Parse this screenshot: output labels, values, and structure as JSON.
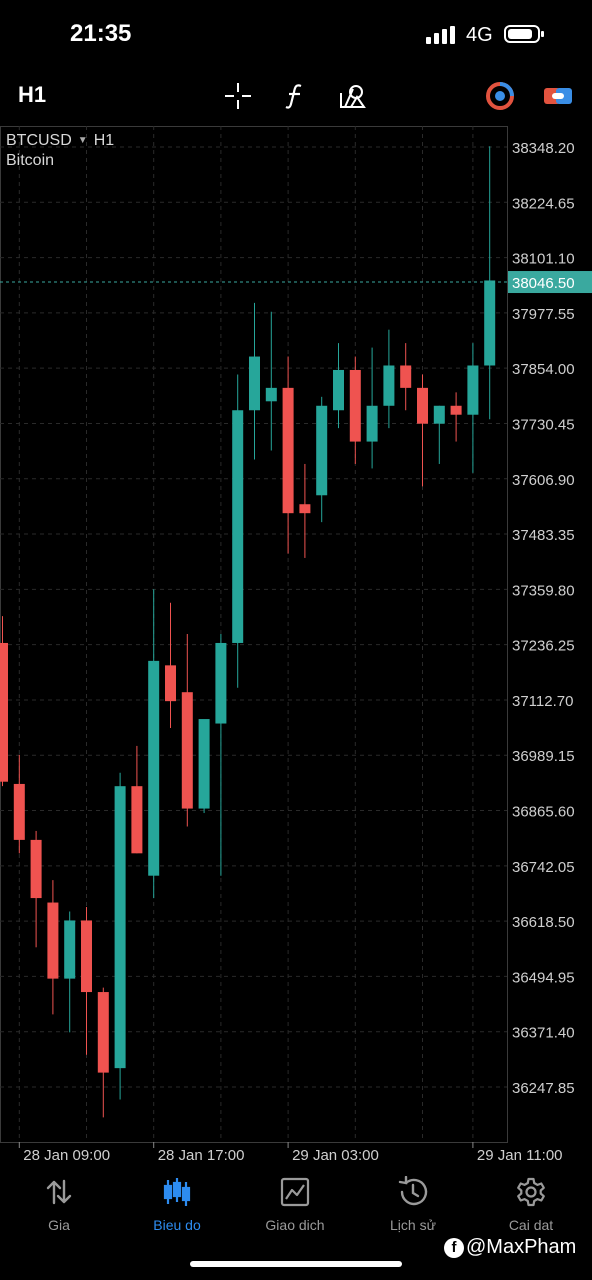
{
  "status_bar": {
    "time": "21:35",
    "network": "4G"
  },
  "toolbar": {
    "timeframe": "H1",
    "icons": [
      "crosshair-icon",
      "function-icon",
      "objects-icon",
      "trade-toggle-icon",
      "link-icon"
    ]
  },
  "chart": {
    "symbol": "BTCUSD",
    "timeframe": "H1",
    "description": "Bitcoin",
    "current_price_label": "38046.50",
    "price_labels": [
      "38348.20",
      "38224.65",
      "38101.10",
      "37977.55",
      "37854.00",
      "37730.45",
      "37606.90",
      "37483.35",
      "37359.80",
      "37236.25",
      "37112.70",
      "36989.15",
      "36865.60",
      "36742.05",
      "36618.50",
      "36494.95",
      "36371.40",
      "36247.85"
    ],
    "time_labels": [
      "28 Jan 09:00",
      "28 Jan 17:00",
      "29 Jan 03:00",
      "29 Jan 11:00"
    ],
    "colors": {
      "bull": "#26a69a",
      "bear": "#ef5350",
      "grid": "#2a2a2a",
      "price_line": "#3aa99f"
    }
  },
  "chart_data": {
    "type": "candlestick",
    "title": "",
    "ylim": [
      36160,
      38380
    ],
    "price_grid": [
      38348.2,
      38224.65,
      38101.1,
      37977.55,
      37854.0,
      37730.45,
      37606.9,
      37483.35,
      37359.8,
      37236.25,
      37112.7,
      36989.15,
      36865.6,
      36742.05,
      36618.5,
      36494.95,
      36371.4,
      36247.85
    ],
    "current_price": 38046.5,
    "candles": [
      {
        "o": 37240,
        "h": 37300,
        "l": 36920,
        "c": 36930
      },
      {
        "o": 36925,
        "h": 36990,
        "l": 36770,
        "c": 36800
      },
      {
        "o": 36800,
        "h": 36820,
        "l": 36560,
        "c": 36670
      },
      {
        "o": 36660,
        "h": 36710,
        "l": 36410,
        "c": 36490
      },
      {
        "o": 36490,
        "h": 36640,
        "l": 36370,
        "c": 36620
      },
      {
        "o": 36620,
        "h": 36650,
        "l": 36320,
        "c": 36460
      },
      {
        "o": 36460,
        "h": 36470,
        "l": 36180,
        "c": 36280
      },
      {
        "o": 36290,
        "h": 36950,
        "l": 36220,
        "c": 36920
      },
      {
        "o": 36920,
        "h": 37010,
        "l": 36770,
        "c": 36770
      },
      {
        "o": 36720,
        "h": 37360,
        "l": 36670,
        "c": 37200
      },
      {
        "o": 37190,
        "h": 37330,
        "l": 37050,
        "c": 37110
      },
      {
        "o": 37130,
        "h": 37260,
        "l": 36830,
        "c": 36870
      },
      {
        "o": 36870,
        "h": 37060,
        "l": 36860,
        "c": 37070
      },
      {
        "o": 37060,
        "h": 37260,
        "l": 36720,
        "c": 37240
      },
      {
        "o": 37240,
        "h": 37840,
        "l": 37140,
        "c": 37760
      },
      {
        "o": 37760,
        "h": 38000,
        "l": 37650,
        "c": 37880
      },
      {
        "o": 37780,
        "h": 37980,
        "l": 37670,
        "c": 37810
      },
      {
        "o": 37810,
        "h": 37880,
        "l": 37440,
        "c": 37530
      },
      {
        "o": 37550,
        "h": 37640,
        "l": 37430,
        "c": 37530
      },
      {
        "o": 37570,
        "h": 37790,
        "l": 37510,
        "c": 37770
      },
      {
        "o": 37760,
        "h": 37910,
        "l": 37720,
        "c": 37850
      },
      {
        "o": 37850,
        "h": 37880,
        "l": 37640,
        "c": 37690
      },
      {
        "o": 37690,
        "h": 37900,
        "l": 37630,
        "c": 37770
      },
      {
        "o": 37770,
        "h": 37940,
        "l": 37720,
        "c": 37860
      },
      {
        "o": 37860,
        "h": 37910,
        "l": 37760,
        "c": 37810
      },
      {
        "o": 37810,
        "h": 37840,
        "l": 37590,
        "c": 37730
      },
      {
        "o": 37730,
        "h": 37770,
        "l": 37640,
        "c": 37770
      },
      {
        "o": 37770,
        "h": 37800,
        "l": 37690,
        "c": 37750
      },
      {
        "o": 37750,
        "h": 37910,
        "l": 37620,
        "c": 37860
      },
      {
        "o": 37860,
        "h": 38350,
        "l": 37740,
        "c": 38050
      }
    ]
  },
  "bottom_nav": {
    "items": [
      {
        "label": "Gia",
        "icon": "quotes-icon"
      },
      {
        "label": "Bieu do",
        "icon": "chart-icon"
      },
      {
        "label": "Giao dich",
        "icon": "trade-icon"
      },
      {
        "label": "Lịch sử",
        "icon": "history-icon"
      },
      {
        "label": "Cai dat",
        "icon": "settings-icon"
      }
    ],
    "active_index": 1
  },
  "watermark": {
    "text": "@MaxPham"
  }
}
